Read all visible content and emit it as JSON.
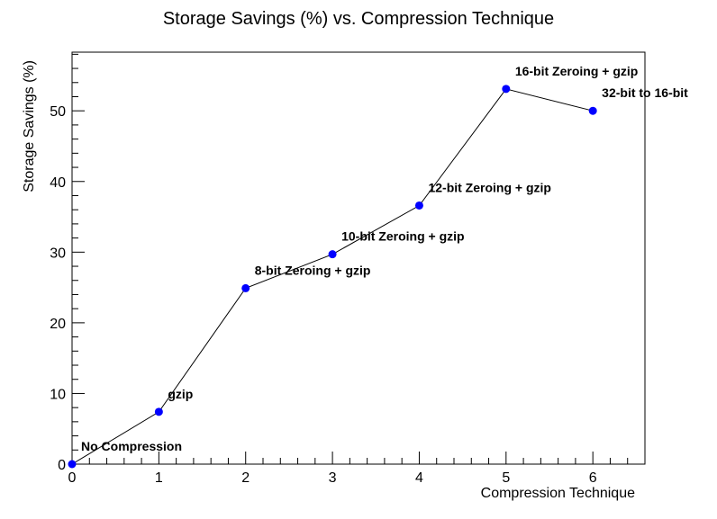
{
  "chart_data": {
    "type": "line",
    "title": "Storage Savings (%) vs. Compression Technique",
    "xlabel": "Compression Technique",
    "ylabel": "Storage Savings (%)",
    "xlim": [
      0,
      6.6
    ],
    "ylim": [
      0,
      58.3
    ],
    "x_ticks": [
      0,
      1,
      2,
      3,
      4,
      5,
      6
    ],
    "y_ticks": [
      0,
      10,
      20,
      30,
      40,
      50
    ],
    "grid": false,
    "legend": "none",
    "series": [
      {
        "x": [
          0,
          1,
          2,
          3,
          4,
          5,
          6
        ],
        "values": [
          0,
          7.4,
          24.9,
          29.7,
          36.6,
          53.1,
          50.0
        ],
        "labels": [
          "No Compression",
          "gzip",
          "8-bit Zeroing + gzip",
          "10-bit Zeroing + gzip",
          "12-bit Zeroing + gzip",
          "16-bit Zeroing + gzip",
          "32-bit to 16-bit"
        ],
        "line_color": "#000000",
        "marker_color": "#0000ff"
      }
    ]
  }
}
